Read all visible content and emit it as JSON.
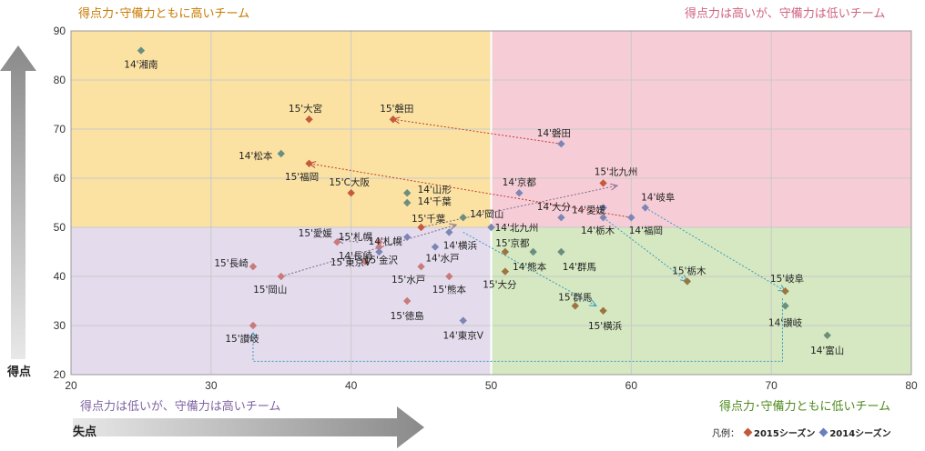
{
  "quadrants": {
    "top_left": "得点力･守備力ともに高いチーム",
    "top_right": "得点力は高いが、守備力は低いチーム",
    "bottom_left": "得点力は低いが、守備力は高いチーム",
    "bottom_right": "得点力･守備力ともに低いチーム"
  },
  "axis_titles": {
    "y": "得点",
    "x": "失点"
  },
  "legend": {
    "prefix": "凡例：",
    "s2015": "2015シーズン",
    "s2014": "2014シーズン"
  },
  "colors": {
    "top_left": "#fbe2a3",
    "top_right": "#f6cdd7",
    "bottom_left": "#e4dced",
    "bottom_right": "#d5e8c1",
    "s2015_upper": "#c45a3c",
    "s2015_lower": "#c97b7b",
    "s2015_right": "#9b7540",
    "s2014_main": "#7c86b5",
    "s2014_green": "#6b8f7f",
    "title_top_left": "#c77a00",
    "title_top_right": "#d0637f",
    "title_bottom_left": "#8064a2",
    "title_bottom_right": "#4f8a1e"
  },
  "chart_data": {
    "type": "scatter",
    "xlabel": "失点",
    "ylabel": "得点",
    "xlim": [
      20,
      80
    ],
    "ylim": [
      20,
      90
    ],
    "xticks": [
      20,
      30,
      40,
      50,
      60,
      70,
      80
    ],
    "yticks": [
      20,
      30,
      40,
      50,
      60,
      70,
      80,
      90
    ],
    "quadrant_split": {
      "x": 50,
      "y": 50
    },
    "grid": true,
    "legend_position": "bottom-right",
    "series": [
      {
        "name": "2015シーズン",
        "points": [
          {
            "label": "15'大宮",
            "x": 37,
            "y": 72,
            "c": "s2015_upper"
          },
          {
            "label": "15'磐田",
            "x": 43,
            "y": 72,
            "c": "s2015_upper"
          },
          {
            "label": "15'福岡",
            "x": 37,
            "y": 63,
            "c": "s2015_upper"
          },
          {
            "label": "15'C大阪",
            "x": 40,
            "y": 57,
            "c": "s2015_upper"
          },
          {
            "label": "15'千葉",
            "x": 45,
            "y": 50,
            "c": "s2015_upper"
          },
          {
            "label": "15'北九州",
            "x": 58,
            "y": 59,
            "c": "s2015_upper"
          },
          {
            "label": "15'長崎",
            "x": 33,
            "y": 42,
            "c": "s2015_lower"
          },
          {
            "label": "15'岡山",
            "x": 35,
            "y": 40,
            "c": "s2015_lower"
          },
          {
            "label": "15'愛媛",
            "x": 39,
            "y": 47,
            "c": "s2015_lower"
          },
          {
            "label": "15'札幌",
            "x": 42,
            "y": 47,
            "c": "s2015_lower"
          },
          {
            "label": "15'東京V",
            "x": 41,
            "y": 43,
            "c": "s2015_lower"
          },
          {
            "label": "15'金沢",
            "x": 42,
            "y": 46,
            "c": "s2015_lower"
          },
          {
            "label": "15'水戸",
            "x": 45,
            "y": 42,
            "c": "s2015_lower"
          },
          {
            "label": "15'熊本",
            "x": 47,
            "y": 40,
            "c": "s2015_lower"
          },
          {
            "label": "15'徳島",
            "x": 44,
            "y": 35,
            "c": "s2015_lower"
          },
          {
            "label": "15'讃岐",
            "x": 33,
            "y": 30,
            "c": "s2015_lower"
          },
          {
            "label": "15'京都",
            "x": 51,
            "y": 45,
            "c": "s2015_right"
          },
          {
            "label": "15'大分",
            "x": 51,
            "y": 41,
            "c": "s2015_right"
          },
          {
            "label": "15'群馬",
            "x": 56,
            "y": 34,
            "c": "s2015_right"
          },
          {
            "label": "15'横浜",
            "x": 58,
            "y": 33,
            "c": "s2015_right"
          },
          {
            "label": "15'栃木",
            "x": 64,
            "y": 39,
            "c": "s2015_right"
          },
          {
            "label": "15'岐阜",
            "x": 71,
            "y": 37,
            "c": "s2015_right"
          }
        ]
      },
      {
        "name": "2014シーズン",
        "points": [
          {
            "label": "14'湘南",
            "x": 25,
            "y": 86,
            "c": "s2014_green"
          },
          {
            "label": "14'松本",
            "x": 35,
            "y": 65,
            "c": "s2014_green"
          },
          {
            "label": "14'山形",
            "x": 44,
            "y": 57,
            "c": "s2014_green"
          },
          {
            "label": "14'千葉",
            "x": 44,
            "y": 55,
            "c": "s2014_green"
          },
          {
            "label": "14'岡山",
            "x": 48,
            "y": 52,
            "c": "s2014_green"
          },
          {
            "label": "14'熊本",
            "x": 53,
            "y": 45,
            "c": "s2014_green"
          },
          {
            "label": "14'群馬",
            "x": 55,
            "y": 45,
            "c": "s2014_green"
          },
          {
            "label": "14'讃岐",
            "x": 71,
            "y": 34,
            "c": "s2014_green"
          },
          {
            "label": "14'富山",
            "x": 74,
            "y": 28,
            "c": "s2014_green"
          },
          {
            "label": "14'磐田",
            "x": 55,
            "y": 67,
            "c": "s2014_main"
          },
          {
            "label": "14'京都",
            "x": 52,
            "y": 57,
            "c": "s2014_main"
          },
          {
            "label": "14'愛媛",
            "x": 58,
            "y": 54,
            "c": "s2014_main"
          },
          {
            "label": "14'岐阜",
            "x": 61,
            "y": 54,
            "c": "s2014_main"
          },
          {
            "label": "14'大分",
            "x": 55,
            "y": 52,
            "c": "s2014_main"
          },
          {
            "label": "14'栃木",
            "x": 58,
            "y": 52,
            "c": "s2014_main"
          },
          {
            "label": "14'福岡",
            "x": 60,
            "y": 52,
            "c": "s2014_main"
          },
          {
            "label": "14'北九州",
            "x": 50,
            "y": 50,
            "c": "s2014_main"
          },
          {
            "label": "14'札幌",
            "x": 44,
            "y": 48,
            "c": "s2014_main"
          },
          {
            "label": "14'長崎",
            "x": 42,
            "y": 45,
            "c": "s2014_main"
          },
          {
            "label": "14'横浜",
            "x": 47,
            "y": 49,
            "c": "s2014_main"
          },
          {
            "label": "14'水戸",
            "x": 46,
            "y": 46,
            "c": "s2014_main"
          },
          {
            "label": "14'東京V",
            "x": 48,
            "y": 31,
            "c": "s2014_main"
          }
        ]
      }
    ],
    "arrows": [
      {
        "from": [
          55,
          67
        ],
        "to": [
          43,
          72
        ],
        "color": "#c0392b"
      },
      {
        "from": [
          60,
          52
        ],
        "to": [
          37,
          63
        ],
        "color": "#c0392b"
      },
      {
        "from": [
          35,
          40
        ],
        "to": [
          47.5,
          50.5
        ],
        "color": "#7a6a8a"
      },
      {
        "from": [
          45,
          50
        ],
        "to": [
          59,
          58.5
        ],
        "color": "#7a6a8a"
      },
      {
        "from": [
          58,
          52
        ],
        "to": [
          64,
          39
        ],
        "color": "#3a9ac0"
      },
      {
        "from": [
          61,
          54
        ],
        "to": [
          71,
          37
        ],
        "color": "#3a9ac0"
      },
      {
        "from": [
          48,
          49
        ],
        "to": [
          57.5,
          34
        ],
        "color": "#3a9ac0"
      },
      {
        "from": [
          40.5,
          47
        ],
        "to": [
          39,
          47.5
        ],
        "color": "#7a6a8a"
      }
    ]
  }
}
